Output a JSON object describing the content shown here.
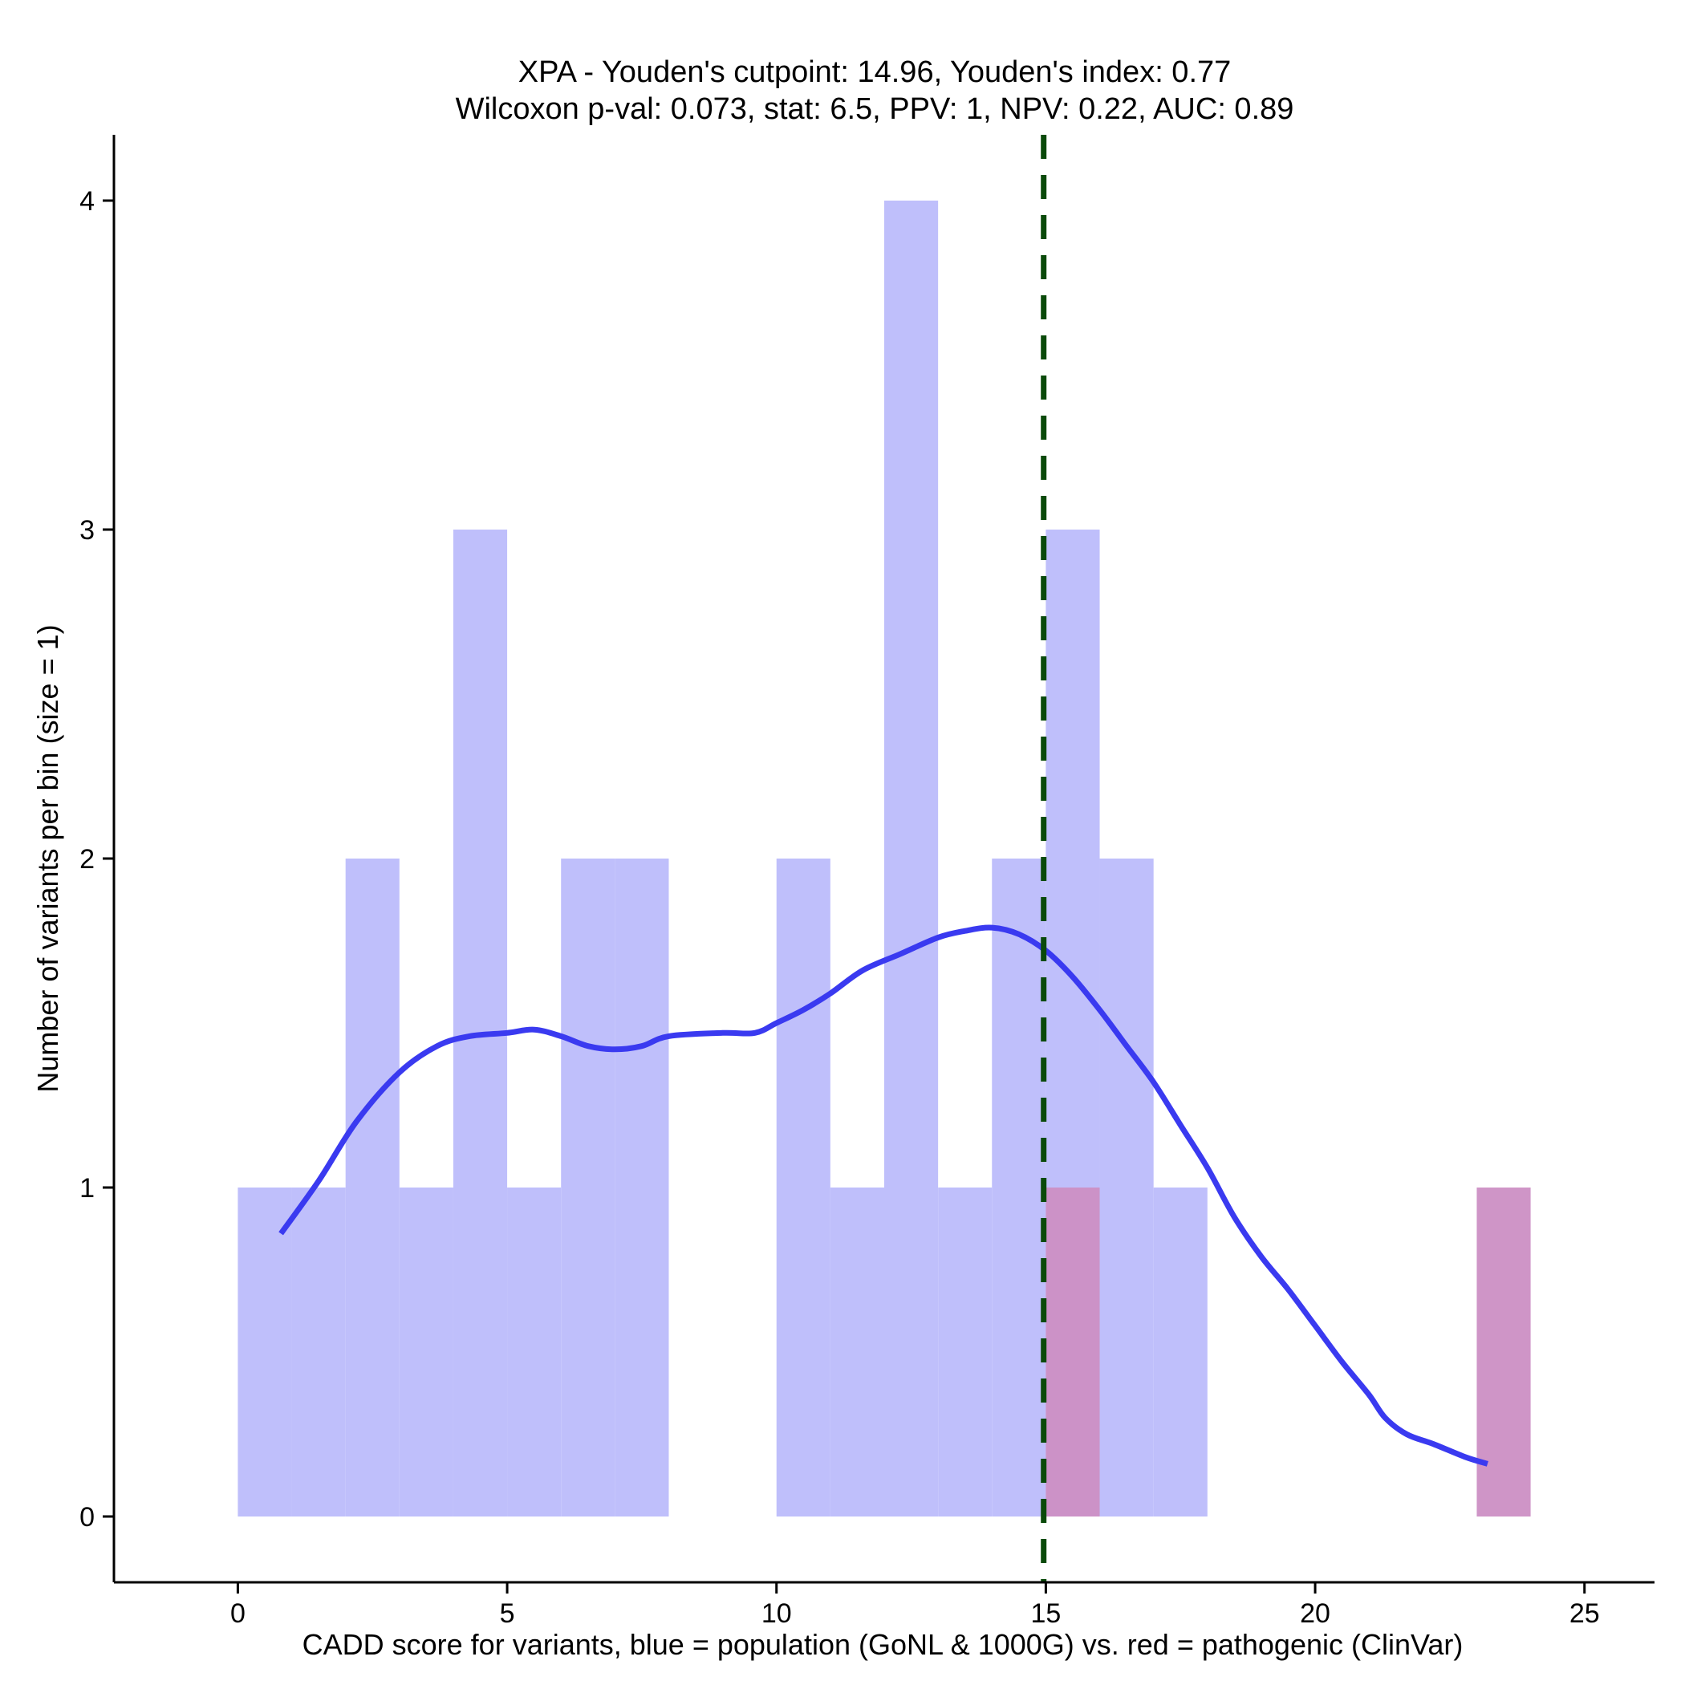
{
  "chart_data": {
    "type": "bar",
    "title_line1": "XPA - Youden's cutpoint: 14.96, Youden's index: 0.77",
    "title_line2": "Wilcoxon p-val: 0.073, stat: 6.5, PPV: 1, NPV: 0.22, AUC: 0.89",
    "xlabel": "CADD score for variants, blue = population (GoNL & 1000G) vs. red = pathogenic (ClinVar)",
    "ylabel": "Number of variants per bin (size = 1)",
    "xlim": [
      -2.3,
      26.3
    ],
    "ylim": [
      -0.2,
      4.2
    ],
    "x_ticks": [
      0,
      5,
      10,
      15,
      20,
      25
    ],
    "y_ticks": [
      0,
      1,
      2,
      3,
      4
    ],
    "bin_size": 1,
    "series": [
      {
        "name": "population (GoNL & 1000G)",
        "color": "#bfbffb",
        "bins": [
          {
            "start": 0,
            "count": 1
          },
          {
            "start": 1,
            "count": 1
          },
          {
            "start": 2,
            "count": 2
          },
          {
            "start": 3,
            "count": 1
          },
          {
            "start": 4,
            "count": 3
          },
          {
            "start": 5,
            "count": 1
          },
          {
            "start": 6,
            "count": 2
          },
          {
            "start": 7,
            "count": 2
          },
          {
            "start": 10,
            "count": 2
          },
          {
            "start": 11,
            "count": 1
          },
          {
            "start": 12,
            "count": 4
          },
          {
            "start": 13,
            "count": 1
          },
          {
            "start": 14,
            "count": 2
          },
          {
            "start": 15,
            "count": 3
          },
          {
            "start": 16,
            "count": 2
          },
          {
            "start": 17,
            "count": 1
          }
        ]
      },
      {
        "name": "pathogenic (ClinVar)",
        "color": "#cc8fc4",
        "bins": [
          {
            "start": 15,
            "count": 1
          },
          {
            "start": 23,
            "count": 1
          }
        ]
      }
    ],
    "density_line": {
      "name": "population density",
      "color": "#3a3af0",
      "points": [
        [
          0.8,
          0.86
        ],
        [
          1.5,
          1.02
        ],
        [
          2.2,
          1.2
        ],
        [
          3.0,
          1.35
        ],
        [
          3.7,
          1.43
        ],
        [
          4.3,
          1.46
        ],
        [
          5.0,
          1.47
        ],
        [
          5.5,
          1.48
        ],
        [
          6.0,
          1.46
        ],
        [
          6.5,
          1.43
        ],
        [
          7.0,
          1.42
        ],
        [
          7.5,
          1.43
        ],
        [
          8.0,
          1.46
        ],
        [
          9.0,
          1.47
        ],
        [
          9.6,
          1.47
        ],
        [
          10.0,
          1.5
        ],
        [
          10.5,
          1.54
        ],
        [
          11.0,
          1.59
        ],
        [
          11.6,
          1.66
        ],
        [
          12.3,
          1.71
        ],
        [
          13.0,
          1.76
        ],
        [
          13.5,
          1.78
        ],
        [
          14.0,
          1.79
        ],
        [
          14.5,
          1.77
        ],
        [
          15.0,
          1.72
        ],
        [
          15.5,
          1.64
        ],
        [
          16.0,
          1.54
        ],
        [
          16.5,
          1.43
        ],
        [
          17.0,
          1.32
        ],
        [
          17.5,
          1.19
        ],
        [
          18.0,
          1.06
        ],
        [
          18.5,
          0.91
        ],
        [
          19.0,
          0.79
        ],
        [
          19.5,
          0.69
        ],
        [
          20.0,
          0.58
        ],
        [
          20.5,
          0.47
        ],
        [
          21.0,
          0.37
        ],
        [
          21.3,
          0.3
        ],
        [
          21.7,
          0.25
        ],
        [
          22.2,
          0.22
        ],
        [
          22.8,
          0.18
        ],
        [
          23.2,
          0.16
        ]
      ]
    },
    "cutpoint": {
      "value": 14.96,
      "color": "#0a4a0a",
      "label": "Youden's cutpoint"
    }
  }
}
